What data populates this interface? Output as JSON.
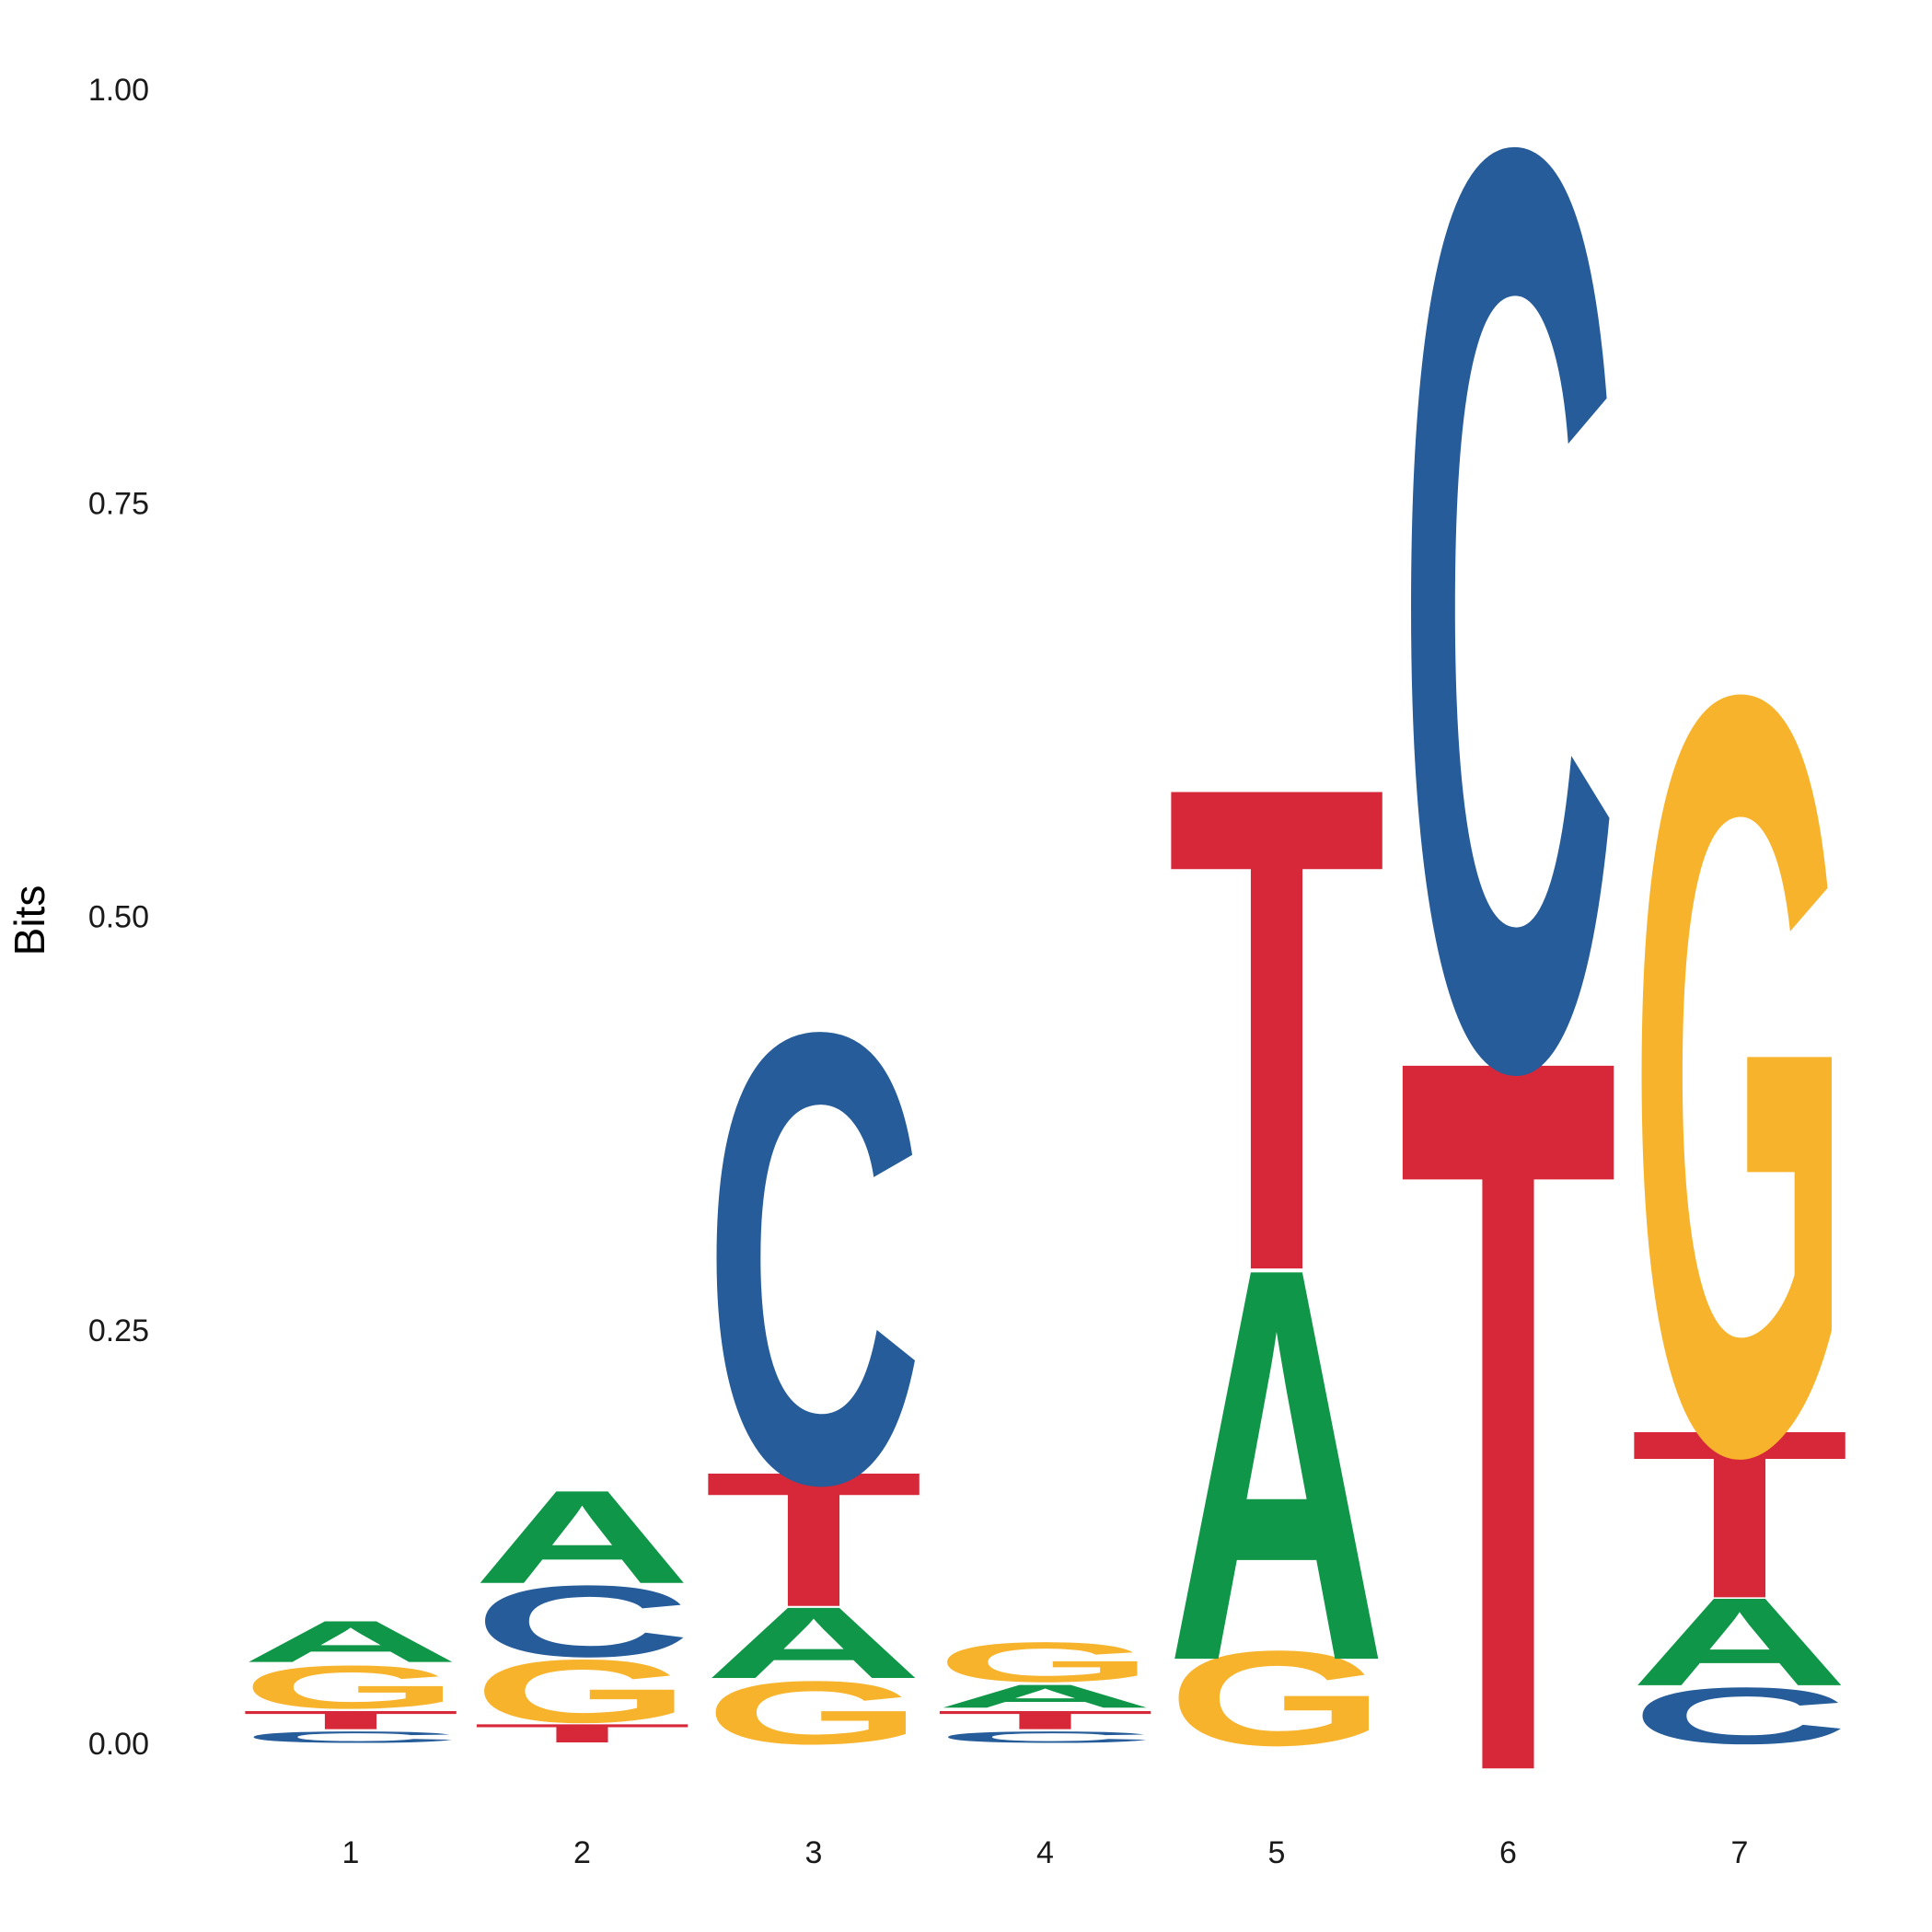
{
  "chart_data": {
    "type": "sequence-logo",
    "ylabel": "Bits",
    "ylim": [
      0,
      1.0
    ],
    "yticks": [
      "0.00",
      "0.25",
      "0.50",
      "0.75",
      "1.00"
    ],
    "colors": {
      "A": "#109648",
      "C": "#255C99",
      "G": "#F7B32B",
      "T": "#D62839"
    },
    "positions": [
      {
        "label": "1",
        "stack": [
          {
            "letter": "C",
            "height": 0.008
          },
          {
            "letter": "T",
            "height": 0.013
          },
          {
            "letter": "G",
            "height": 0.028
          },
          {
            "letter": "A",
            "height": 0.027
          }
        ]
      },
      {
        "label": "2",
        "stack": [
          {
            "letter": "T",
            "height": 0.013
          },
          {
            "letter": "G",
            "height": 0.04
          },
          {
            "letter": "C",
            "height": 0.045
          },
          {
            "letter": "A",
            "height": 0.058
          }
        ]
      },
      {
        "label": "3",
        "stack": [
          {
            "letter": "G",
            "height": 0.04
          },
          {
            "letter": "A",
            "height": 0.045
          },
          {
            "letter": "T",
            "height": 0.083
          },
          {
            "letter": "C",
            "height": 0.272
          }
        ]
      },
      {
        "label": "4",
        "stack": [
          {
            "letter": "C",
            "height": 0.008
          },
          {
            "letter": "T",
            "height": 0.013
          },
          {
            "letter": "A",
            "height": 0.016
          },
          {
            "letter": "G",
            "height": 0.026
          }
        ]
      },
      {
        "label": "5",
        "stack": [
          {
            "letter": "G",
            "height": 0.059
          },
          {
            "letter": "A",
            "height": 0.238
          },
          {
            "letter": "T",
            "height": 0.293
          }
        ]
      },
      {
        "label": "6",
        "stack": [
          {
            "letter": "T",
            "height": 0.431
          },
          {
            "letter": "C",
            "height": 0.553
          }
        ]
      },
      {
        "label": "7",
        "stack": [
          {
            "letter": "C",
            "height": 0.036
          },
          {
            "letter": "A",
            "height": 0.055
          },
          {
            "letter": "T",
            "height": 0.103
          },
          {
            "letter": "G",
            "height": 0.456
          }
        ]
      }
    ]
  }
}
